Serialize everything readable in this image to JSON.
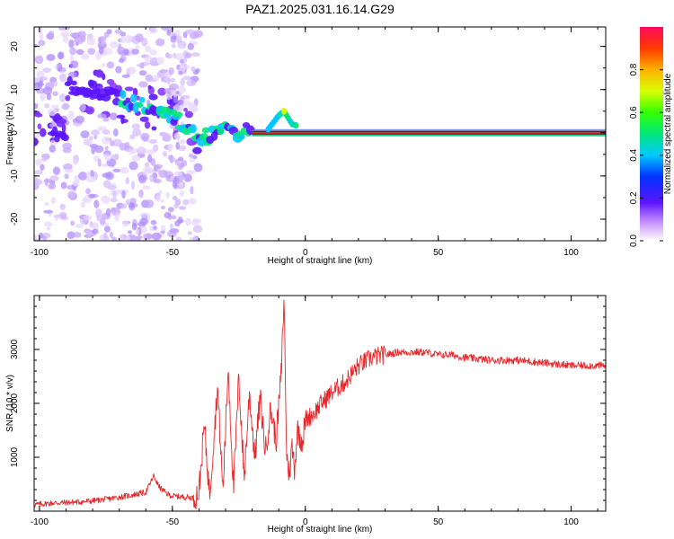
{
  "title": "PAZ1.2025.031.16.14.G29",
  "colors": {
    "snr_line": "#e8262a",
    "ridge": "#e8262a",
    "axis": "#000000"
  },
  "chart_data": [
    {
      "type": "heatmap",
      "xlabel": "Height of straight line (km)",
      "ylabel": "Frequency (Hz)",
      "xlim": [
        -102,
        113
      ],
      "ylim": [
        -25,
        24.5
      ],
      "x_ticks": [
        "-100",
        "-50",
        "0",
        "50",
        "100"
      ],
      "y_ticks": [
        "-20",
        "-10",
        "0",
        "10",
        "20"
      ],
      "colorbar": {
        "label": "Normalized spectral amplitude",
        "range": [
          0,
          1
        ],
        "ticks": [
          "0.0",
          "0.2",
          "0.4",
          "0.6",
          "0.8"
        ]
      },
      "ridge": {
        "x": [
          -90,
          -80,
          -70,
          -60,
          -50,
          -42,
          -38,
          -32,
          -25,
          -20,
          -15,
          -10,
          -8,
          -5,
          0,
          5,
          10,
          20,
          30,
          50,
          80,
          113
        ],
        "freq": [
          11,
          10,
          8,
          6,
          4,
          0,
          -1,
          1,
          0,
          1,
          0,
          4,
          5,
          2,
          1,
          0,
          0,
          0,
          0,
          0,
          0,
          0
        ]
      }
    },
    {
      "type": "line",
      "xlabel": "Height of straight line (km)",
      "ylabel": "SNR (10 * v/v)",
      "xlim": [
        -102,
        113
      ],
      "ylim": [
        0,
        4000
      ],
      "x_ticks": [
        "-100",
        "-50",
        "0",
        "50",
        "100"
      ],
      "y_ticks": [
        "1000",
        "2000",
        "3000"
      ],
      "series": [
        {
          "x": [
            -102,
            -95,
            -90,
            -85,
            -80,
            -75,
            -70,
            -65,
            -60,
            -57,
            -55,
            -52,
            -50,
            -45,
            -42,
            -40,
            -38,
            -36,
            -33,
            -31,
            -29,
            -27,
            -25,
            -23,
            -21,
            -19,
            -17,
            -15,
            -13,
            -11,
            -9,
            -8,
            -7,
            -6,
            -5,
            -4,
            -3,
            -1,
            0,
            3,
            6,
            10,
            15,
            20,
            25,
            30,
            35,
            40,
            45,
            50,
            55,
            60,
            70,
            80,
            90,
            100,
            113
          ],
          "y": [
            120,
            150,
            160,
            170,
            190,
            220,
            260,
            300,
            350,
            650,
            450,
            320,
            280,
            260,
            250,
            350,
            1600,
            300,
            2300,
            350,
            2700,
            400,
            2500,
            600,
            2200,
            1000,
            2100,
            1100,
            1900,
            1300,
            2600,
            4000,
            1000,
            700,
            1200,
            800,
            1500,
            1300,
            1700,
            1800,
            2000,
            2200,
            2400,
            2700,
            2850,
            2900,
            2950,
            2950,
            2950,
            2900,
            2900,
            2850,
            2800,
            2800,
            2750,
            2700,
            2700
          ]
        }
      ]
    }
  ]
}
